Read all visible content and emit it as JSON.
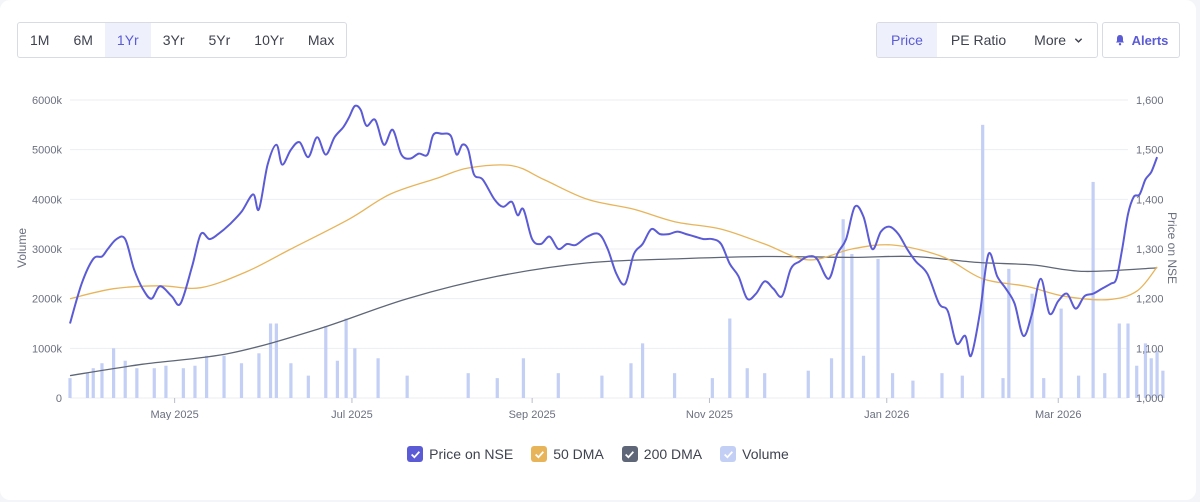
{
  "toolbar": {
    "ranges": [
      "1M",
      "6M",
      "1Yr",
      "3Yr",
      "5Yr",
      "10Yr",
      "Max"
    ],
    "active_range": "1Yr",
    "modes": [
      "Price",
      "PE Ratio",
      "More"
    ],
    "active_mode": "Price",
    "alerts_label": "Alerts"
  },
  "legend": [
    {
      "label": "Price on NSE",
      "color": "#5b5bd6"
    },
    {
      "label": "50 DMA",
      "color": "#e8b45a"
    },
    {
      "label": "200 DMA",
      "color": "#5e6677"
    },
    {
      "label": "Volume",
      "color": "#c3cff5"
    }
  ],
  "chart_data": {
    "type": "line",
    "x_start": "2025-03-26",
    "x_end": "2026-03-25",
    "x_ticks": [
      "May 2025",
      "Jul 2025",
      "Sep 2025",
      "Nov 2025",
      "Jan 2026",
      "Mar 2026"
    ],
    "x_tick_dates": [
      "2025-05-01",
      "2025-07-01",
      "2025-09-01",
      "2025-11-01",
      "2026-01-01",
      "2026-03-01"
    ],
    "y_left": {
      "label": "Volume",
      "range": [
        0,
        6000000
      ],
      "ticks": [
        "0",
        "1000k",
        "2000k",
        "3000k",
        "4000k",
        "5000k",
        "6000k"
      ]
    },
    "y_right": {
      "label": "Price on NSE",
      "range": [
        1000,
        1600
      ],
      "ticks": [
        "1,000",
        "1,100",
        "1,200",
        "1,300",
        "1,400",
        "1,500",
        "1,600"
      ]
    },
    "grid": true,
    "legend_position": "bottom",
    "series": [
      {
        "name": "Price on NSE",
        "axis": "right",
        "color": "#5b5bd6",
        "points": [
          [
            "2025-03-26",
            1150
          ],
          [
            "2025-03-30",
            1230
          ],
          [
            "2025-04-03",
            1280
          ],
          [
            "2025-04-06",
            1285
          ],
          [
            "2025-04-08",
            1300
          ],
          [
            "2025-04-11",
            1320
          ],
          [
            "2025-04-14",
            1320
          ],
          [
            "2025-04-17",
            1260
          ],
          [
            "2025-04-20",
            1220
          ],
          [
            "2025-04-23",
            1200
          ],
          [
            "2025-04-26",
            1225
          ],
          [
            "2025-04-30",
            1205
          ],
          [
            "2025-05-03",
            1190
          ],
          [
            "2025-05-07",
            1265
          ],
          [
            "2025-05-10",
            1330
          ],
          [
            "2025-05-13",
            1320
          ],
          [
            "2025-05-16",
            1330
          ],
          [
            "2025-05-20",
            1350
          ],
          [
            "2025-05-24",
            1375
          ],
          [
            "2025-05-28",
            1410
          ],
          [
            "2025-05-30",
            1380
          ],
          [
            "2025-06-02",
            1470
          ],
          [
            "2025-06-05",
            1510
          ],
          [
            "2025-06-07",
            1470
          ],
          [
            "2025-06-10",
            1500
          ],
          [
            "2025-06-13",
            1515
          ],
          [
            "2025-06-16",
            1485
          ],
          [
            "2025-06-19",
            1525
          ],
          [
            "2025-06-22",
            1490
          ],
          [
            "2025-06-25",
            1525
          ],
          [
            "2025-06-28",
            1545
          ],
          [
            "2025-06-30",
            1565
          ],
          [
            "2025-07-02",
            1588
          ],
          [
            "2025-07-04",
            1580
          ],
          [
            "2025-07-06",
            1548
          ],
          [
            "2025-07-09",
            1560
          ],
          [
            "2025-07-12",
            1510
          ],
          [
            "2025-07-15",
            1540
          ],
          [
            "2025-07-18",
            1490
          ],
          [
            "2025-07-21",
            1482
          ],
          [
            "2025-07-24",
            1492
          ],
          [
            "2025-07-27",
            1490
          ],
          [
            "2025-07-29",
            1530
          ],
          [
            "2025-08-01",
            1532
          ],
          [
            "2025-08-04",
            1528
          ],
          [
            "2025-08-06",
            1490
          ],
          [
            "2025-08-08",
            1510
          ],
          [
            "2025-08-10",
            1500
          ],
          [
            "2025-08-12",
            1450
          ],
          [
            "2025-08-15",
            1440
          ],
          [
            "2025-08-19",
            1400
          ],
          [
            "2025-08-22",
            1385
          ],
          [
            "2025-08-25",
            1395
          ],
          [
            "2025-08-27",
            1368
          ],
          [
            "2025-08-29",
            1380
          ],
          [
            "2025-09-01",
            1320
          ],
          [
            "2025-09-04",
            1310
          ],
          [
            "2025-09-07",
            1325
          ],
          [
            "2025-09-10",
            1300
          ],
          [
            "2025-09-13",
            1310
          ],
          [
            "2025-09-16",
            1308
          ],
          [
            "2025-09-20",
            1325
          ],
          [
            "2025-09-24",
            1330
          ],
          [
            "2025-09-27",
            1300
          ],
          [
            "2025-09-30",
            1250
          ],
          [
            "2025-10-03",
            1230
          ],
          [
            "2025-10-06",
            1290
          ],
          [
            "2025-10-09",
            1310
          ],
          [
            "2025-10-12",
            1340
          ],
          [
            "2025-10-15",
            1330
          ],
          [
            "2025-10-18",
            1330
          ],
          [
            "2025-10-21",
            1335
          ],
          [
            "2025-10-24",
            1330
          ],
          [
            "2025-10-27",
            1325
          ],
          [
            "2025-10-30",
            1320
          ],
          [
            "2025-11-02",
            1320
          ],
          [
            "2025-11-05",
            1310
          ],
          [
            "2025-11-08",
            1270
          ],
          [
            "2025-11-11",
            1245
          ],
          [
            "2025-11-14",
            1200
          ],
          [
            "2025-11-17",
            1210
          ],
          [
            "2025-11-20",
            1235
          ],
          [
            "2025-11-23",
            1220
          ],
          [
            "2025-11-26",
            1205
          ],
          [
            "2025-11-29",
            1260
          ],
          [
            "2025-12-02",
            1275
          ],
          [
            "2025-12-05",
            1285
          ],
          [
            "2025-12-08",
            1280
          ],
          [
            "2025-12-12",
            1240
          ],
          [
            "2025-12-15",
            1290
          ],
          [
            "2025-12-18",
            1320
          ],
          [
            "2025-12-21",
            1385
          ],
          [
            "2025-12-24",
            1365
          ],
          [
            "2025-12-27",
            1300
          ],
          [
            "2025-12-30",
            1335
          ],
          [
            "2026-01-02",
            1345
          ],
          [
            "2026-01-05",
            1330
          ],
          [
            "2026-01-08",
            1300
          ],
          [
            "2026-01-11",
            1275
          ],
          [
            "2026-01-15",
            1250
          ],
          [
            "2026-01-19",
            1190
          ],
          [
            "2026-01-22",
            1175
          ],
          [
            "2026-01-25",
            1110
          ],
          [
            "2026-01-28",
            1125
          ],
          [
            "2026-01-30",
            1085
          ],
          [
            "2026-02-02",
            1170
          ],
          [
            "2026-02-05",
            1290
          ],
          [
            "2026-02-08",
            1245
          ],
          [
            "2026-02-11",
            1220
          ],
          [
            "2026-02-14",
            1190
          ],
          [
            "2026-02-17",
            1125
          ],
          [
            "2026-02-20",
            1170
          ],
          [
            "2026-02-23",
            1240
          ],
          [
            "2026-02-26",
            1170
          ],
          [
            "2026-03-01",
            1195
          ],
          [
            "2026-03-04",
            1210
          ],
          [
            "2026-03-07",
            1180
          ],
          [
            "2026-03-10",
            1205
          ],
          [
            "2026-03-13",
            1210
          ],
          [
            "2026-03-16",
            1220
          ],
          [
            "2026-03-19",
            1230
          ],
          [
            "2026-03-21",
            1240
          ],
          [
            "2026-03-23",
            1300
          ],
          [
            "2026-03-25",
            1370
          ],
          [
            "2026-03-27",
            1405
          ],
          [
            "2026-03-29",
            1410
          ],
          [
            "2026-03-31",
            1440
          ],
          [
            "2026-04-02",
            1455
          ],
          [
            "2026-04-04",
            1485
          ]
        ]
      },
      {
        "name": "50 DMA",
        "axis": "right",
        "color": "#e8b45a",
        "points": [
          [
            "2025-03-26",
            1200
          ],
          [
            "2025-04-10",
            1220
          ],
          [
            "2025-04-26",
            1226
          ],
          [
            "2025-05-10",
            1222
          ],
          [
            "2025-05-26",
            1255
          ],
          [
            "2025-06-10",
            1300
          ],
          [
            "2025-06-30",
            1360
          ],
          [
            "2025-07-14",
            1410
          ],
          [
            "2025-07-30",
            1442
          ],
          [
            "2025-08-10",
            1463
          ],
          [
            "2025-08-25",
            1468
          ],
          [
            "2025-09-05",
            1440
          ],
          [
            "2025-09-20",
            1400
          ],
          [
            "2025-10-06",
            1380
          ],
          [
            "2025-10-20",
            1355
          ],
          [
            "2025-11-05",
            1340
          ],
          [
            "2025-11-20",
            1310
          ],
          [
            "2025-12-05",
            1278
          ],
          [
            "2025-12-20",
            1300
          ],
          [
            "2026-01-03",
            1308
          ],
          [
            "2026-01-20",
            1285
          ],
          [
            "2026-02-03",
            1240
          ],
          [
            "2026-02-18",
            1225
          ],
          [
            "2026-03-03",
            1205
          ],
          [
            "2026-03-18",
            1198
          ],
          [
            "2026-03-28",
            1215
          ],
          [
            "2026-04-04",
            1264
          ]
        ]
      },
      {
        "name": "200 DMA",
        "axis": "right",
        "color": "#5e6677",
        "points": [
          [
            "2025-03-26",
            1045
          ],
          [
            "2025-04-20",
            1068
          ],
          [
            "2025-05-20",
            1090
          ],
          [
            "2025-06-20",
            1140
          ],
          [
            "2025-07-20",
            1200
          ],
          [
            "2025-08-20",
            1245
          ],
          [
            "2025-09-20",
            1272
          ],
          [
            "2025-10-20",
            1280
          ],
          [
            "2025-11-20",
            1285
          ],
          [
            "2025-12-20",
            1283
          ],
          [
            "2026-01-10",
            1285
          ],
          [
            "2026-02-01",
            1273
          ],
          [
            "2026-02-20",
            1268
          ],
          [
            "2026-03-10",
            1255
          ],
          [
            "2026-04-04",
            1262
          ]
        ]
      }
    ],
    "volume": {
      "name": "Volume",
      "axis": "left",
      "color": "#c3cff5",
      "bars": [
        [
          "2025-03-26",
          400000
        ],
        [
          "2025-04-01",
          500000
        ],
        [
          "2025-04-03",
          600000
        ],
        [
          "2025-04-06",
          700000
        ],
        [
          "2025-04-10",
          1000000
        ],
        [
          "2025-04-14",
          750000
        ],
        [
          "2025-04-18",
          600000
        ],
        [
          "2025-04-24",
          600000
        ],
        [
          "2025-04-28",
          650000
        ],
        [
          "2025-05-04",
          600000
        ],
        [
          "2025-05-08",
          650000
        ],
        [
          "2025-05-12",
          850000
        ],
        [
          "2025-05-18",
          850000
        ],
        [
          "2025-05-24",
          700000
        ],
        [
          "2025-05-30",
          900000
        ],
        [
          "2025-06-03",
          1500000
        ],
        [
          "2025-06-05",
          1500000
        ],
        [
          "2025-06-10",
          700000
        ],
        [
          "2025-06-16",
          450000
        ],
        [
          "2025-06-22",
          1450000
        ],
        [
          "2025-06-26",
          750000
        ],
        [
          "2025-06-29",
          1600000
        ],
        [
          "2025-07-02",
          1000000
        ],
        [
          "2025-07-10",
          800000
        ],
        [
          "2025-07-20",
          450000
        ],
        [
          "2025-08-10",
          500000
        ],
        [
          "2025-08-20",
          400000
        ],
        [
          "2025-08-29",
          800000
        ],
        [
          "2025-09-10",
          500000
        ],
        [
          "2025-09-25",
          450000
        ],
        [
          "2025-10-05",
          700000
        ],
        [
          "2025-10-09",
          1100000
        ],
        [
          "2025-10-20",
          500000
        ],
        [
          "2025-11-02",
          400000
        ],
        [
          "2025-11-08",
          1600000
        ],
        [
          "2025-11-14",
          600000
        ],
        [
          "2025-11-20",
          500000
        ],
        [
          "2025-12-05",
          550000
        ],
        [
          "2025-12-13",
          800000
        ],
        [
          "2025-12-17",
          3600000
        ],
        [
          "2025-12-20",
          2900000
        ],
        [
          "2025-12-24",
          850000
        ],
        [
          "2025-12-29",
          2800000
        ],
        [
          "2026-01-03",
          500000
        ],
        [
          "2026-01-10",
          350000
        ],
        [
          "2026-01-20",
          500000
        ],
        [
          "2026-01-27",
          450000
        ],
        [
          "2026-02-03",
          5500000
        ],
        [
          "2026-02-10",
          400000
        ],
        [
          "2026-02-12",
          2600000
        ],
        [
          "2026-02-20",
          2100000
        ],
        [
          "2026-02-24",
          400000
        ],
        [
          "2026-03-02",
          1800000
        ],
        [
          "2026-03-08",
          450000
        ],
        [
          "2026-03-13",
          4350000
        ],
        [
          "2026-03-17",
          500000
        ],
        [
          "2026-03-22",
          1500000
        ],
        [
          "2026-03-25",
          1500000
        ],
        [
          "2026-03-28",
          650000
        ],
        [
          "2026-03-31",
          1100000
        ],
        [
          "2026-04-02",
          800000
        ],
        [
          "2026-04-04",
          950000
        ],
        [
          "2026-04-06",
          550000
        ]
      ]
    }
  }
}
